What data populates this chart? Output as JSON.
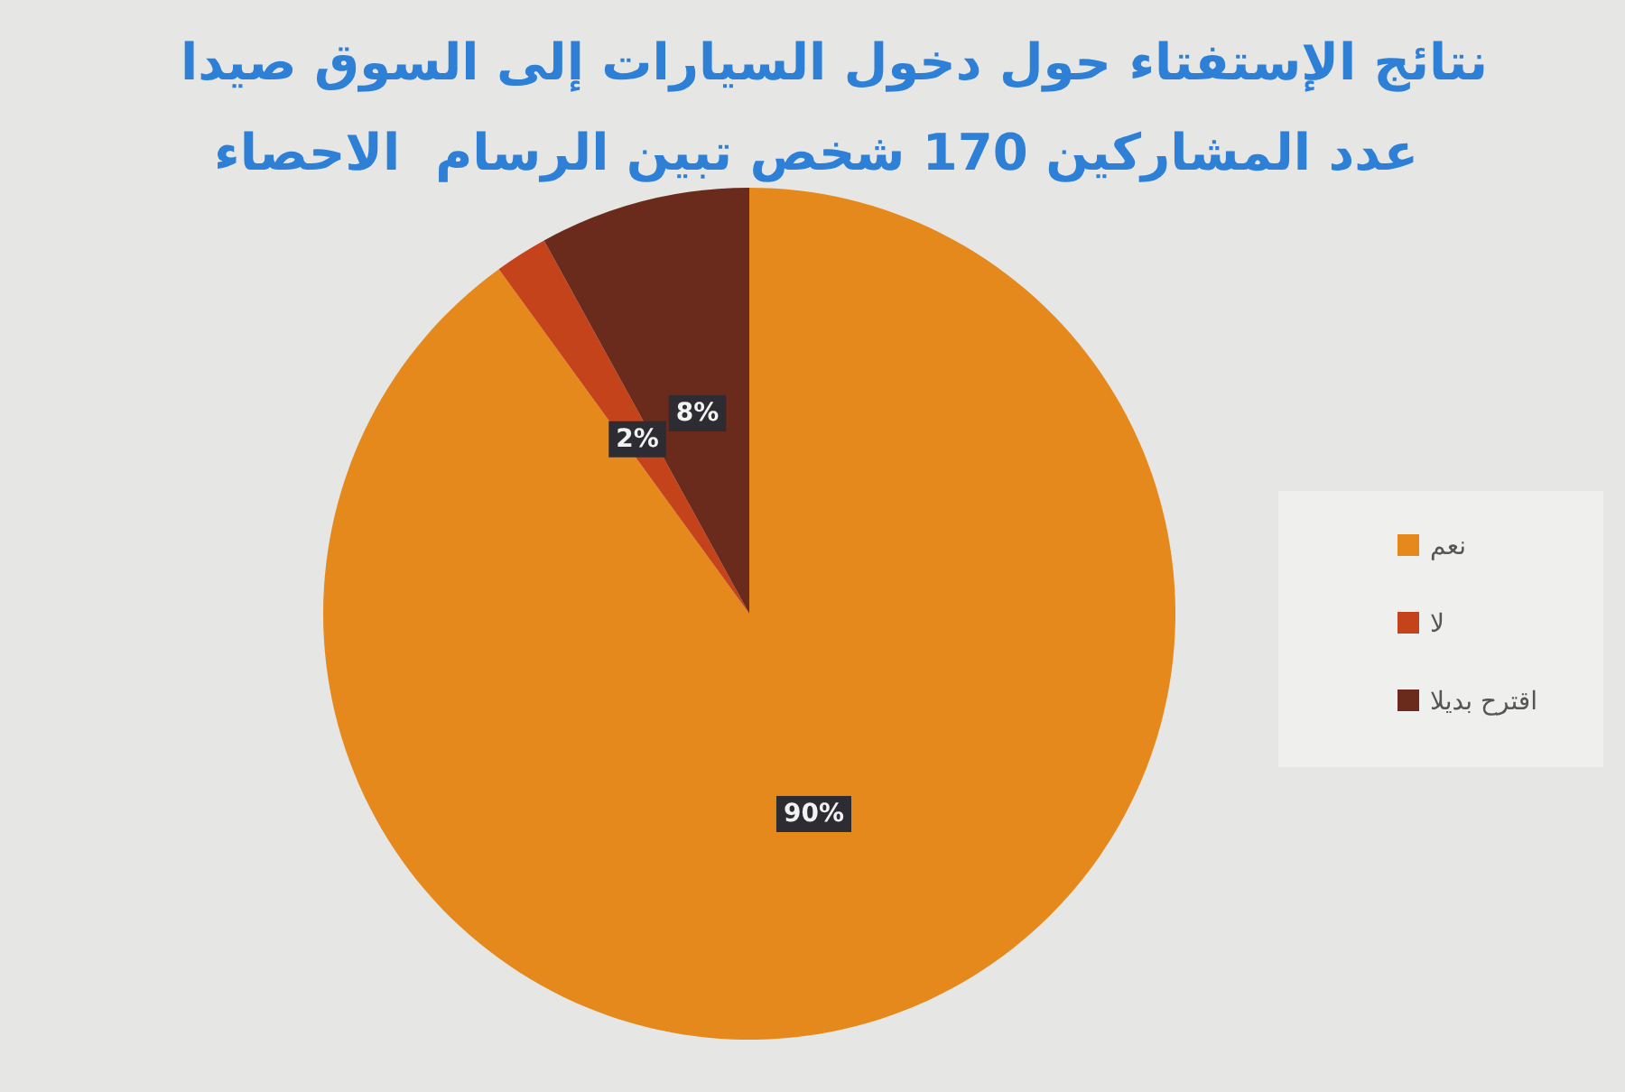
{
  "chart_data": {
    "type": "pie",
    "title": "نتائج الإستفتاء حول دخول السيارات إلى السوق صيدا",
    "subtitle": "عدد المشاركين 170 شخص تبين الرسام  الاحصاء",
    "categories": [
      "نعم",
      "لا",
      "اقترح بديلا"
    ],
    "values": [
      90,
      2,
      8
    ],
    "colors": [
      "#e5891c",
      "#c4431b",
      "#6a2a1c"
    ],
    "value_labels": [
      "90%",
      "2%",
      "8%"
    ],
    "legend": "right"
  }
}
